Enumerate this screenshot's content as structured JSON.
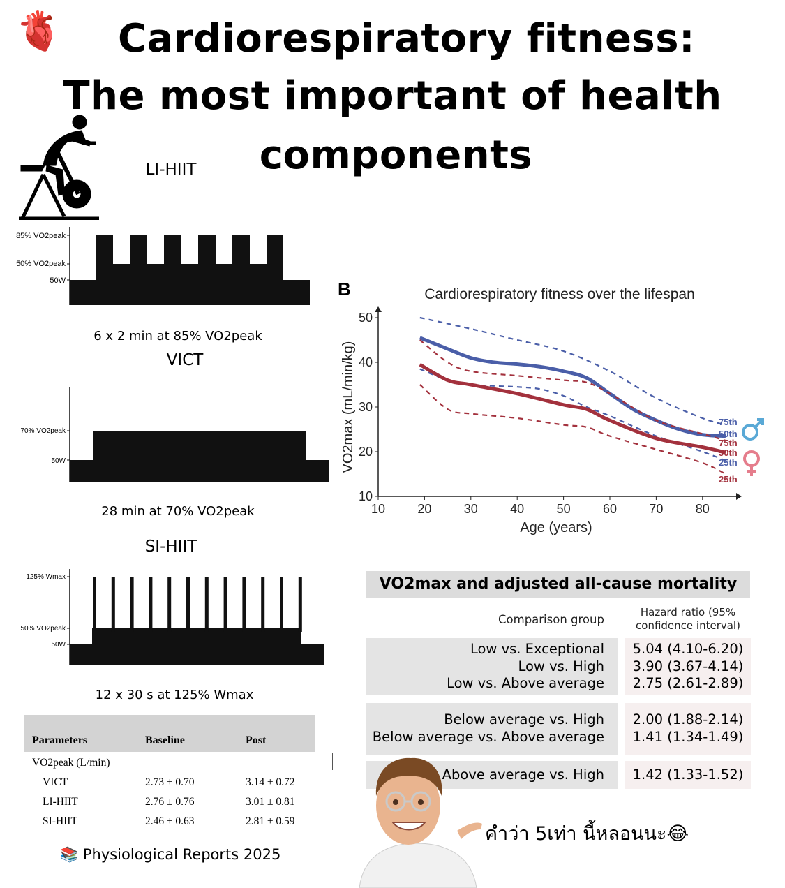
{
  "page": {
    "title_line1": "Cardiorespiratory fitness:",
    "title_line2": "The most important of health",
    "title_line3": "components",
    "heart_emoji": "🫀"
  },
  "protocols": {
    "li_hiit": {
      "name": "LI-HIIT",
      "y_labels": [
        "85% VO2peak",
        "50% VO2peak",
        "50W"
      ],
      "caption": "6 x 2 min at 85% VO2peak"
    },
    "vict": {
      "name": "VICT",
      "y_labels": [
        "70% VO2peak",
        "50W"
      ],
      "caption": "28 min at 70% VO2peak"
    },
    "si_hiit": {
      "name": "SI-HIIT",
      "y_labels": [
        "125% Wmax",
        "50% VO2peak",
        "50W"
      ],
      "caption": "12 x 30 s at 125% Wmax"
    }
  },
  "parameters_table": {
    "headers": [
      "Parameters",
      "Baseline",
      "Post"
    ],
    "group_label": "VO2peak (L/min)",
    "rows": [
      {
        "name": "VICT",
        "baseline": "2.73 ± 0.70",
        "post": "3.14 ± 0.72"
      },
      {
        "name": "LI-HIIT",
        "baseline": "2.76 ± 0.76",
        "post": "3.01 ± 0.81"
      },
      {
        "name": "SI-HIIT",
        "baseline": "2.46 ± 0.63",
        "post": "2.81 ± 0.59"
      }
    ]
  },
  "reference": {
    "icon": "books-icon",
    "emoji": "📚",
    "text": "Physiological Reports 2025"
  },
  "chart_data": {
    "type": "line",
    "panel_label": "B",
    "title": "Cardiorespiratory fitness over the lifespan",
    "xlabel": "Age (years)",
    "ylabel": "VO2max (mL/min/kg)",
    "xlim": [
      10,
      85
    ],
    "ylim": [
      10,
      50
    ],
    "x_ticks": [
      10,
      20,
      30,
      40,
      50,
      60,
      70,
      80
    ],
    "y_ticks": [
      10,
      20,
      30,
      40,
      50
    ],
    "colors": {
      "male": "#4a5ea8",
      "female": "#a3313d",
      "male_symbol": "#5aa9d6",
      "female_symbol": "#e57d8c"
    },
    "series": [
      {
        "sex": "male",
        "percentile": "75th",
        "style": "dashed",
        "x": [
          19,
          30,
          40,
          50,
          60,
          70,
          80,
          85
        ],
        "y": [
          50,
          47.5,
          45,
          42.5,
          38,
          32,
          27.5,
          26
        ]
      },
      {
        "sex": "male",
        "percentile": "50th",
        "style": "solid",
        "x": [
          19,
          25,
          30,
          35,
          40,
          45,
          50,
          55,
          60,
          65,
          70,
          75,
          80,
          85
        ],
        "y": [
          45.5,
          43,
          41,
          40,
          39.6,
          39,
          38,
          36.5,
          33,
          29.5,
          27,
          25,
          23.8,
          23.5
        ]
      },
      {
        "sex": "male",
        "percentile": "25th",
        "style": "dashed",
        "x": [
          19,
          25,
          30,
          40,
          45,
          50,
          55,
          60,
          70,
          80,
          85
        ],
        "y": [
          38.5,
          36,
          35,
          34.5,
          34,
          32.5,
          30,
          28,
          23.5,
          20,
          18
        ]
      },
      {
        "sex": "female",
        "percentile": "75th",
        "style": "dashed",
        "x": [
          19,
          25,
          30,
          40,
          50,
          55,
          60,
          70,
          80,
          85
        ],
        "y": [
          45,
          40,
          38,
          37,
          36,
          35.5,
          33,
          27,
          24,
          22.5
        ]
      },
      {
        "sex": "female",
        "percentile": "50th",
        "style": "solid",
        "x": [
          19,
          25,
          30,
          40,
          50,
          55,
          60,
          70,
          80,
          85
        ],
        "y": [
          39.5,
          36,
          35,
          33,
          30.5,
          29.5,
          27,
          23,
          21,
          19.8
        ]
      },
      {
        "sex": "female",
        "percentile": "25th",
        "style": "dashed",
        "x": [
          19,
          25,
          30,
          40,
          50,
          55,
          60,
          70,
          80,
          85
        ],
        "y": [
          35,
          29.5,
          28.5,
          27.5,
          26,
          25.5,
          23.5,
          20.5,
          17.5,
          15
        ]
      }
    ],
    "labels_male": [
      "75th",
      "50th",
      "25th"
    ],
    "labels_female": [
      "75th",
      "50th",
      "25th"
    ]
  },
  "mortality_table": {
    "title": "VO2max and adjusted all-cause mortality",
    "col1": "Comparison group",
    "col2_line1": "Hazard ratio (95%",
    "col2_line2": "confidence interval)",
    "groups": [
      {
        "comparisons": [
          "Low vs. Exceptional",
          "Low vs. High",
          "Low vs. Above average"
        ],
        "ratios": [
          "5.04 (4.10-6.20)",
          "3.90 (3.67-4.14)",
          "2.75 (2.61-2.89)"
        ]
      },
      {
        "comparisons": [
          "Below average vs. High",
          "Below average vs. Above average"
        ],
        "ratios": [
          "2.00 (1.88-2.14)",
          "1.41 (1.34-1.49)"
        ]
      },
      {
        "comparisons": [
          "Above average vs. High"
        ],
        "ratios": [
          "1.42 (1.33-1.52)"
        ]
      }
    ]
  },
  "caption_thai": "คำว่า 5เท่า นี้หลอนนะ😂"
}
